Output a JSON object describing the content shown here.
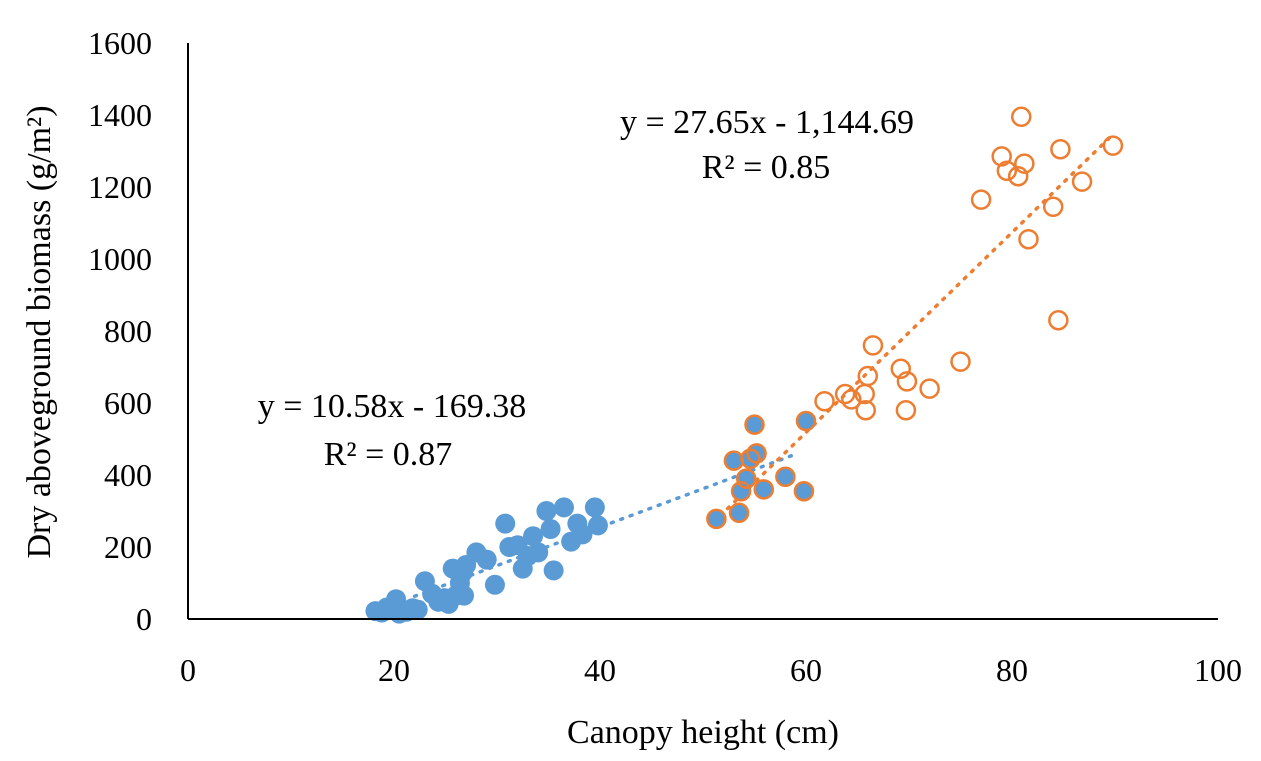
{
  "chart_data": {
    "type": "scatter",
    "xlabel": "Canopy height (cm)",
    "ylabel": "Dry aboveground biomass (g/m²)",
    "xlim": [
      0,
      100
    ],
    "ylim": [
      0,
      1600
    ],
    "xticks": [
      0,
      20,
      40,
      60,
      80,
      100
    ],
    "yticks": [
      0,
      200,
      400,
      600,
      800,
      1000,
      1200,
      1400,
      1600
    ],
    "grid": false,
    "legend": "none",
    "series": [
      {
        "color": "#5B9BD5",
        "marker": "filled-circle",
        "trendline": {
          "type": "linear",
          "style": "dotted",
          "x_range": [
            22,
            59
          ]
        },
        "equation": "y = 10.58x - 169.38",
        "r2": "R² = 0.87",
        "points": [
          [
            18.2,
            22
          ],
          [
            18.8,
            18
          ],
          [
            19.3,
            32
          ],
          [
            19.8,
            28
          ],
          [
            20.2,
            55
          ],
          [
            20.5,
            15
          ],
          [
            20.8,
            25
          ],
          [
            21.2,
            20
          ],
          [
            21.8,
            30
          ],
          [
            22.3,
            26
          ],
          [
            23.0,
            105
          ],
          [
            23.7,
            70
          ],
          [
            24.3,
            48
          ],
          [
            24.9,
            58
          ],
          [
            25.3,
            42
          ],
          [
            25.7,
            140
          ],
          [
            26.0,
            65
          ],
          [
            26.4,
            100
          ],
          [
            26.7,
            130
          ],
          [
            27.0,
            150
          ],
          [
            26.8,
            65
          ],
          [
            28.0,
            185
          ],
          [
            29.0,
            165
          ],
          [
            29.8,
            95
          ],
          [
            30.8,
            265
          ],
          [
            31.2,
            200
          ],
          [
            32.0,
            205
          ],
          [
            32.5,
            140
          ],
          [
            33.0,
            175
          ],
          [
            33.5,
            230
          ],
          [
            34.0,
            185
          ],
          [
            34.8,
            300
          ],
          [
            35.2,
            250
          ],
          [
            35.5,
            135
          ],
          [
            36.5,
            310
          ],
          [
            37.2,
            215
          ],
          [
            37.8,
            265
          ],
          [
            38.3,
            235
          ],
          [
            39.5,
            310
          ],
          [
            39.8,
            260
          ],
          [
            51.3,
            278
          ],
          [
            53.0,
            440
          ],
          [
            53.5,
            295
          ],
          [
            53.7,
            355
          ],
          [
            54.2,
            390
          ],
          [
            54.6,
            445
          ],
          [
            55.0,
            540
          ],
          [
            55.2,
            460
          ],
          [
            55.9,
            360
          ],
          [
            58.0,
            395
          ],
          [
            59.8,
            355
          ],
          [
            60.0,
            550
          ]
        ]
      },
      {
        "color": "#ED7D31",
        "marker": "open-circle",
        "trendline": {
          "type": "linear",
          "style": "dotted",
          "x_range": [
            51,
            90
          ]
        },
        "equation": "y = 27.65x - 1,144.69",
        "r2": "R² = 0.85",
        "points": [
          [
            51.3,
            278
          ],
          [
            53.0,
            440
          ],
          [
            53.5,
            295
          ],
          [
            53.7,
            355
          ],
          [
            54.2,
            390
          ],
          [
            54.6,
            445
          ],
          [
            55.0,
            540
          ],
          [
            55.2,
            460
          ],
          [
            55.9,
            360
          ],
          [
            58.0,
            395
          ],
          [
            59.8,
            355
          ],
          [
            60.0,
            550
          ],
          [
            61.8,
            605
          ],
          [
            63.8,
            625
          ],
          [
            64.4,
            610
          ],
          [
            65.7,
            625
          ],
          [
            65.8,
            580
          ],
          [
            66.0,
            675
          ],
          [
            66.5,
            760
          ],
          [
            69.2,
            695
          ],
          [
            69.7,
            580
          ],
          [
            69.8,
            660
          ],
          [
            72.0,
            640
          ],
          [
            75.0,
            715
          ],
          [
            77.0,
            1165
          ],
          [
            79.0,
            1285
          ],
          [
            79.5,
            1245
          ],
          [
            80.6,
            1230
          ],
          [
            80.9,
            1395
          ],
          [
            81.2,
            1265
          ],
          [
            81.6,
            1055
          ],
          [
            84.0,
            1145
          ],
          [
            84.5,
            830
          ],
          [
            84.7,
            1305
          ],
          [
            86.8,
            1215
          ],
          [
            89.8,
            1315
          ]
        ]
      }
    ]
  }
}
